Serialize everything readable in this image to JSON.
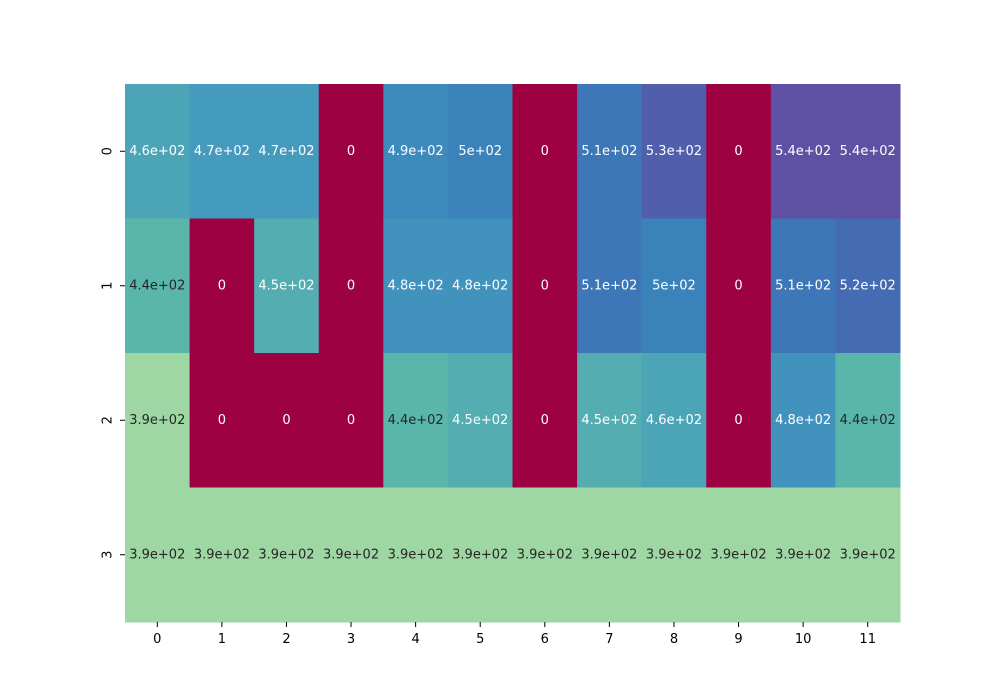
{
  "chart_data": {
    "type": "heatmap",
    "rows": [
      "0",
      "1",
      "2",
      "3"
    ],
    "columns": [
      "0",
      "1",
      "2",
      "3",
      "4",
      "5",
      "6",
      "7",
      "8",
      "9",
      "10",
      "11"
    ],
    "values": [
      [
        460,
        470,
        470,
        0,
        490,
        500,
        0,
        510,
        530,
        0,
        540,
        540
      ],
      [
        440,
        0,
        450,
        0,
        480,
        480,
        0,
        510,
        500,
        0,
        510,
        520
      ],
      [
        390,
        0,
        0,
        0,
        440,
        450,
        0,
        450,
        460,
        0,
        480,
        440
      ],
      [
        390,
        390,
        390,
        390,
        390,
        390,
        390,
        390,
        390,
        390,
        390,
        390
      ]
    ],
    "labels": [
      [
        "4.6e+02",
        "4.7e+02",
        "4.7e+02",
        "0",
        "4.9e+02",
        "5e+02",
        "0",
        "5.1e+02",
        "5.3e+02",
        "0",
        "5.4e+02",
        "5.4e+02"
      ],
      [
        "4.4e+02",
        "0",
        "4.5e+02",
        "0",
        "4.8e+02",
        "4.8e+02",
        "0",
        "5.1e+02",
        "5e+02",
        "0",
        "5.1e+02",
        "5.2e+02"
      ],
      [
        "3.9e+02",
        "0",
        "0",
        "0",
        "4.4e+02",
        "4.5e+02",
        "0",
        "4.5e+02",
        "4.6e+02",
        "0",
        "4.8e+02",
        "4.4e+02"
      ],
      [
        "3.9e+02",
        "3.9e+02",
        "3.9e+02",
        "3.9e+02",
        "3.9e+02",
        "3.9e+02",
        "3.9e+02",
        "3.9e+02",
        "3.9e+02",
        "3.9e+02",
        "3.9e+02",
        "3.9e+02"
      ]
    ],
    "colormap": "Spectral",
    "colorbar": false,
    "annotations": true,
    "zero_color": "#9e0142",
    "title": "",
    "xlabel": "",
    "ylabel": ""
  }
}
